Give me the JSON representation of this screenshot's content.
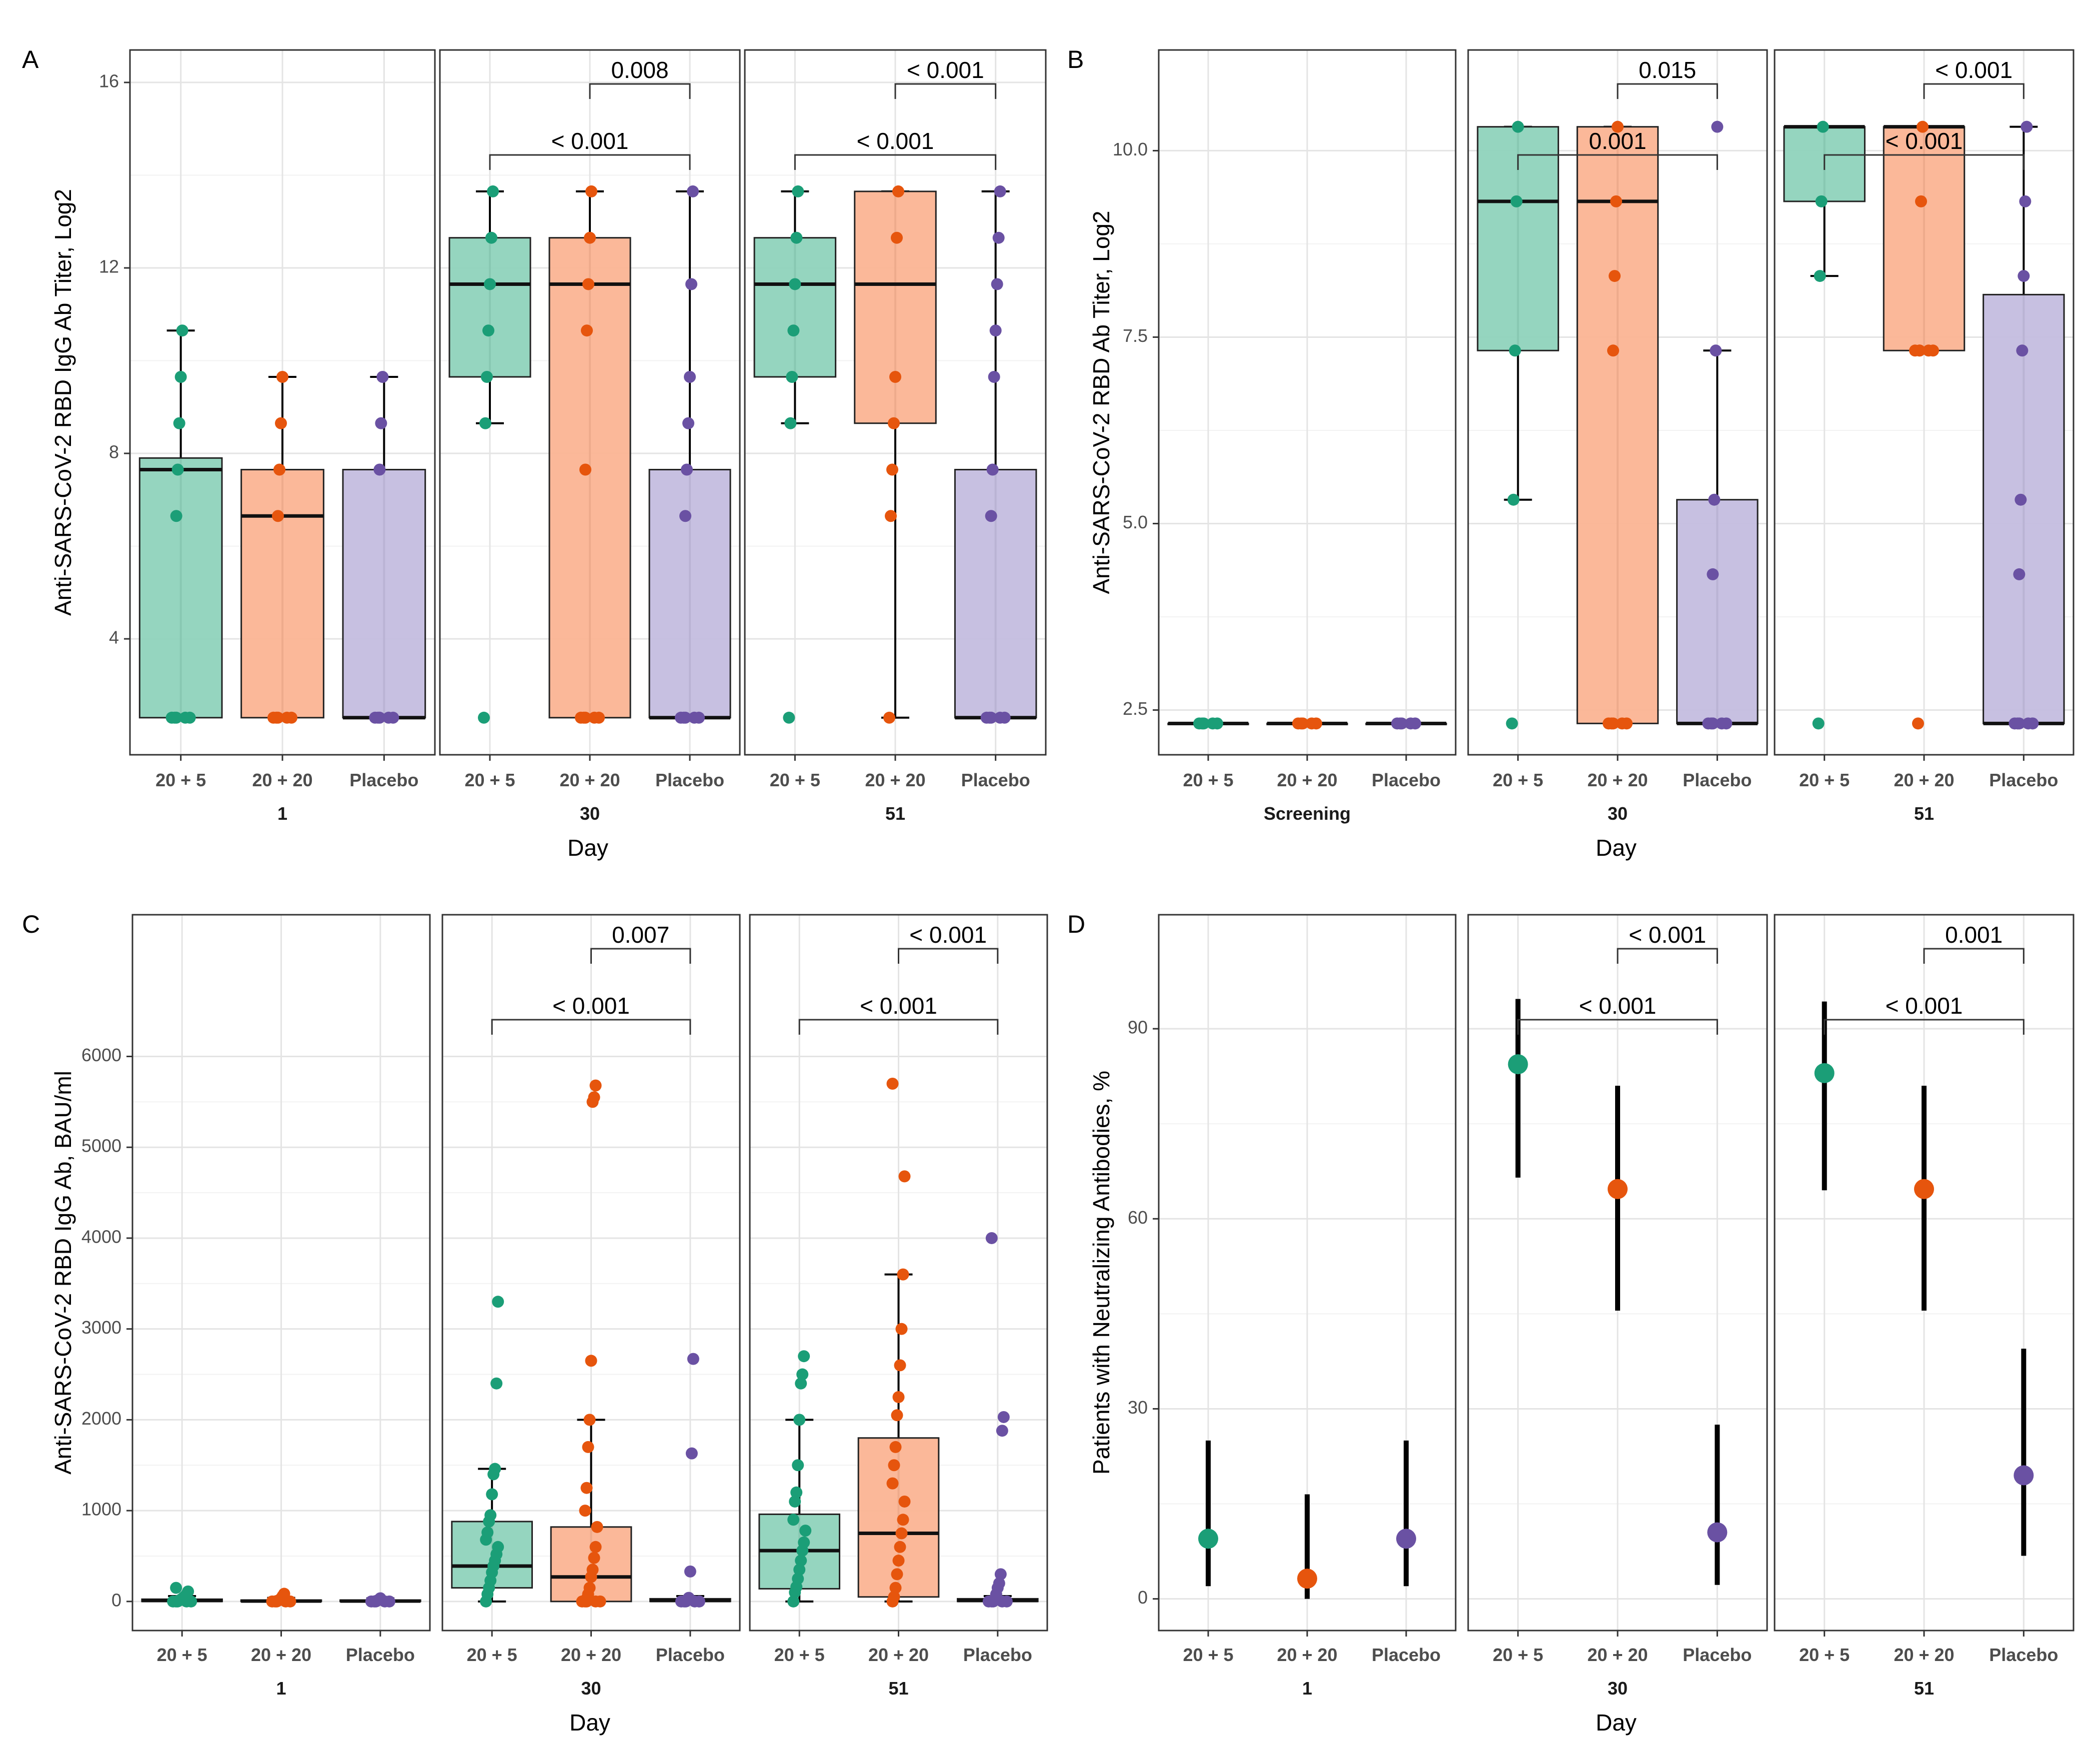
{
  "chart_data": [
    {
      "panel": "A",
      "type": "box",
      "ylabel": "Anti-SARS-CoV-2 RBD IgG Ab Titer, Log2",
      "xlabel": "Day",
      "ylim": [
        1.5,
        16.7
      ],
      "yticks": [
        4,
        8,
        12,
        16
      ],
      "ytick_labels": [
        "4",
        "8",
        "12",
        "16"
      ],
      "facets": [
        {
          "label": "1",
          "groups": [
            {
              "name": "20 + 5",
              "color": "#1b9e77",
              "fill": "#8fd3bc",
              "q1": 2.3,
              "median": 7.65,
              "q3": 7.9,
              "whisker_low": 2.3,
              "whisker_high": 10.65,
              "points": [
                2.3,
                6.65,
                7.65,
                8.65,
                9.65,
                10.65
              ]
            },
            {
              "name": "20 + 20",
              "color": "#e6550d",
              "fill": "#fbb493",
              "q1": 2.3,
              "median": 6.65,
              "q3": 7.65,
              "whisker_low": 2.3,
              "whisker_high": 9.65,
              "points": [
                2.3,
                6.65,
                7.65,
                8.65,
                9.65
              ]
            },
            {
              "name": "Placebo",
              "color": "#6a51a3",
              "fill": "#c4bddf",
              "q1": 2.3,
              "median": 2.3,
              "q3": 7.65,
              "whisker_low": 2.3,
              "whisker_high": 9.65,
              "points": [
                2.3,
                7.65,
                8.65,
                9.65
              ]
            }
          ],
          "comparisons": []
        },
        {
          "label": "30",
          "groups": [
            {
              "name": "20 + 5",
              "color": "#1b9e77",
              "fill": "#8fd3bc",
              "q1": 9.65,
              "median": 11.65,
              "q3": 12.65,
              "whisker_low": 8.65,
              "whisker_high": 13.65,
              "points": [
                2.3,
                8.65,
                9.65,
                10.65,
                11.65,
                12.65,
                13.65
              ]
            },
            {
              "name": "20 + 20",
              "color": "#e6550d",
              "fill": "#fbb493",
              "q1": 2.3,
              "median": 11.65,
              "q3": 12.65,
              "whisker_low": 2.3,
              "whisker_high": 13.65,
              "points": [
                2.3,
                7.65,
                10.65,
                11.65,
                12.65,
                13.65
              ]
            },
            {
              "name": "Placebo",
              "color": "#6a51a3",
              "fill": "#c4bddf",
              "q1": 2.3,
              "median": 2.3,
              "q3": 7.65,
              "whisker_low": 2.3,
              "whisker_high": 13.65,
              "points": [
                2.3,
                6.65,
                7.65,
                8.65,
                9.65,
                11.65,
                13.65
              ]
            }
          ],
          "comparisons": [
            {
              "from": 1,
              "to": 2,
              "label": "0.008",
              "level": 2
            },
            {
              "from": 0,
              "to": 2,
              "label": "< 0.001",
              "level": 1
            }
          ]
        },
        {
          "label": "51",
          "groups": [
            {
              "name": "20 + 5",
              "color": "#1b9e77",
              "fill": "#8fd3bc",
              "q1": 9.65,
              "median": 11.65,
              "q3": 12.65,
              "whisker_low": 8.65,
              "whisker_high": 13.65,
              "points": [
                2.3,
                8.65,
                9.65,
                10.65,
                11.65,
                12.65,
                13.65
              ]
            },
            {
              "name": "20 + 20",
              "color": "#e6550d",
              "fill": "#fbb493",
              "q1": 8.65,
              "median": 11.65,
              "q3": 13.65,
              "whisker_low": 2.3,
              "whisker_high": 13.65,
              "points": [
                2.3,
                6.65,
                7.65,
                8.65,
                9.65,
                12.65,
                13.65
              ]
            },
            {
              "name": "Placebo",
              "color": "#6a51a3",
              "fill": "#c4bddf",
              "q1": 2.3,
              "median": 2.3,
              "q3": 7.65,
              "whisker_low": 2.3,
              "whisker_high": 13.65,
              "points": [
                2.3,
                6.65,
                7.65,
                9.65,
                10.65,
                11.65,
                12.65,
                13.65
              ]
            }
          ],
          "comparisons": [
            {
              "from": 1,
              "to": 2,
              "label": "< 0.001",
              "level": 2
            },
            {
              "from": 0,
              "to": 2,
              "label": "< 0.001",
              "level": 1
            }
          ]
        }
      ]
    },
    {
      "panel": "B",
      "type": "box",
      "ylabel": "Anti-SARS-CoV-2 RBD Ab Titer, Log2",
      "xlabel": "Day",
      "ylim": [
        1.9,
        11.35
      ],
      "yticks": [
        2.5,
        5.0,
        7.5,
        10.0
      ],
      "ytick_labels": [
        "2.5",
        "5.0",
        "7.5",
        "10.0"
      ],
      "facets": [
        {
          "label": "Screening",
          "groups": [
            {
              "name": "20 + 5",
              "color": "#1b9e77",
              "fill": "#8fd3bc",
              "q1": 2.32,
              "median": 2.32,
              "q3": 2.32,
              "whisker_low": 2.32,
              "whisker_high": 2.32,
              "points": [
                2.32
              ]
            },
            {
              "name": "20 + 20",
              "color": "#e6550d",
              "fill": "#fbb493",
              "q1": 2.32,
              "median": 2.32,
              "q3": 2.32,
              "whisker_low": 2.32,
              "whisker_high": 2.32,
              "points": [
                2.32
              ]
            },
            {
              "name": "Placebo",
              "color": "#6a51a3",
              "fill": "#c4bddf",
              "q1": 2.32,
              "median": 2.32,
              "q3": 2.32,
              "whisker_low": 2.32,
              "whisker_high": 2.32,
              "points": [
                2.32
              ]
            }
          ],
          "comparisons": []
        },
        {
          "label": "30",
          "groups": [
            {
              "name": "20 + 5",
              "color": "#1b9e77",
              "fill": "#8fd3bc",
              "q1": 7.32,
              "median": 9.32,
              "q3": 10.32,
              "whisker_low": 5.32,
              "whisker_high": 10.32,
              "points": [
                2.32,
                5.32,
                7.32,
                9.32,
                10.32
              ]
            },
            {
              "name": "20 + 20",
              "color": "#e6550d",
              "fill": "#fbb493",
              "q1": 2.32,
              "median": 9.32,
              "q3": 10.32,
              "whisker_low": 2.32,
              "whisker_high": 10.32,
              "points": [
                2.32,
                7.32,
                8.32,
                9.32,
                10.32
              ]
            },
            {
              "name": "Placebo",
              "color": "#6a51a3",
              "fill": "#c4bddf",
              "q1": 2.32,
              "median": 2.32,
              "q3": 5.32,
              "whisker_low": 2.32,
              "whisker_high": 7.32,
              "points": [
                2.32,
                4.32,
                5.32,
                7.32,
                10.32
              ]
            }
          ],
          "comparisons": [
            {
              "from": 1,
              "to": 2,
              "label": "0.015",
              "level": 2
            },
            {
              "from": 0,
              "to": 2,
              "label": "0.001",
              "level": 1
            }
          ]
        },
        {
          "label": "51",
          "groups": [
            {
              "name": "20 + 5",
              "color": "#1b9e77",
              "fill": "#8fd3bc",
              "q1": 9.32,
              "median": 10.32,
              "q3": 10.32,
              "whisker_low": 8.32,
              "whisker_high": 10.32,
              "points": [
                2.32,
                8.32,
                9.32,
                10.32
              ]
            },
            {
              "name": "20 + 20",
              "color": "#e6550d",
              "fill": "#fbb493",
              "q1": 7.32,
              "median": 10.32,
              "q3": 10.32,
              "whisker_low": 7.32,
              "whisker_high": 10.32,
              "points": [
                2.32,
                7.32,
                9.32,
                10.32
              ]
            },
            {
              "name": "Placebo",
              "color": "#6a51a3",
              "fill": "#c4bddf",
              "q1": 2.32,
              "median": 2.32,
              "q3": 8.07,
              "whisker_low": 2.32,
              "whisker_high": 10.32,
              "points": [
                2.32,
                4.32,
                5.32,
                7.32,
                8.32,
                9.32,
                10.32
              ]
            }
          ],
          "comparisons": [
            {
              "from": 1,
              "to": 2,
              "label": "< 0.001",
              "level": 2
            },
            {
              "from": 0,
              "to": 2,
              "label": "< 0.001",
              "level": 1
            }
          ]
        }
      ]
    },
    {
      "panel": "C",
      "type": "box",
      "ylabel": "Anti-SARS-CoV-2 RBD IgG Ab, BAU/ml",
      "xlabel": "Day",
      "ylim": [
        -320,
        7560
      ],
      "yticks": [
        0,
        1000,
        2000,
        3000,
        4000,
        5000,
        6000
      ],
      "ytick_labels": [
        "0",
        "1000",
        "2000",
        "3000",
        "4000",
        "5000",
        "6000"
      ],
      "facets": [
        {
          "label": "1",
          "groups": [
            {
              "name": "20 + 5",
              "color": "#1b9e77",
              "fill": "#8fd3bc",
              "q1": 0,
              "median": 10,
              "q3": 25,
              "whisker_low": 0,
              "whisker_high": 60,
              "points": [
                0,
                5,
                10,
                20,
                30,
                45,
                60,
                80,
                110,
                150
              ]
            },
            {
              "name": "20 + 20",
              "color": "#e6550d",
              "fill": "#fbb493",
              "q1": 0,
              "median": 5,
              "q3": 15,
              "whisker_low": 0,
              "whisker_high": 40,
              "points": [
                0,
                5,
                10,
                20,
                35,
                60,
                85
              ]
            },
            {
              "name": "Placebo",
              "color": "#6a51a3",
              "fill": "#c4bddf",
              "q1": 0,
              "median": 5,
              "q3": 15,
              "whisker_low": 0,
              "whisker_high": 35,
              "points": [
                0,
                5,
                10,
                20,
                35
              ]
            }
          ],
          "comparisons": []
        },
        {
          "label": "30",
          "groups": [
            {
              "name": "20 + 5",
              "color": "#1b9e77",
              "fill": "#8fd3bc",
              "q1": 150,
              "median": 390,
              "q3": 880,
              "whisker_low": 0,
              "whisker_high": 1460,
              "points": [
                0,
                80,
                150,
                230,
                320,
                390,
                450,
                520,
                600,
                680,
                760,
                880,
                950,
                1180,
                1400,
                1460,
                2400,
                3300
              ]
            },
            {
              "name": "20 + 20",
              "color": "#e6550d",
              "fill": "#fbb493",
              "q1": 0,
              "median": 270,
              "q3": 820,
              "whisker_low": 0,
              "whisker_high": 2000,
              "points": [
                0,
                30,
                80,
                150,
                270,
                350,
                480,
                600,
                820,
                1000,
                1250,
                1700,
                2000,
                2650,
                5500,
                5550,
                5680
              ]
            },
            {
              "name": "Placebo",
              "color": "#6a51a3",
              "fill": "#c4bddf",
              "q1": 0,
              "median": 10,
              "q3": 30,
              "whisker_low": 0,
              "whisker_high": 60,
              "points": [
                0,
                10,
                20,
                40,
                330,
                1630,
                2670
              ]
            }
          ],
          "comparisons": [
            {
              "from": 1,
              "to": 2,
              "label": "0.007",
              "level": 2
            },
            {
              "from": 0,
              "to": 2,
              "label": "< 0.001",
              "level": 1
            }
          ]
        },
        {
          "label": "51",
          "groups": [
            {
              "name": "20 + 5",
              "color": "#1b9e77",
              "fill": "#8fd3bc",
              "q1": 140,
              "median": 560,
              "q3": 960,
              "whisker_low": 0,
              "whisker_high": 2000,
              "points": [
                0,
                100,
                160,
                250,
                350,
                450,
                560,
                650,
                780,
                900,
                1100,
                1200,
                1500,
                2000,
                2400,
                2500,
                2700
              ]
            },
            {
              "name": "20 + 20",
              "color": "#e6550d",
              "fill": "#fbb493",
              "q1": 50,
              "median": 750,
              "q3": 1800,
              "whisker_low": 0,
              "whisker_high": 3600,
              "points": [
                0,
                50,
                150,
                300,
                450,
                600,
                750,
                900,
                1100,
                1300,
                1500,
                1700,
                2050,
                2250,
                2600,
                3000,
                3600,
                4680,
                5700
              ]
            },
            {
              "name": "Placebo",
              "color": "#6a51a3",
              "fill": "#c4bddf",
              "q1": 0,
              "median": 10,
              "q3": 30,
              "whisker_low": 0,
              "whisker_high": 60,
              "points": [
                0,
                10,
                30,
                80,
                150,
                200,
                300,
                1880,
                2030,
                4000
              ]
            }
          ],
          "comparisons": [
            {
              "from": 1,
              "to": 2,
              "label": "< 0.001",
              "level": 2
            },
            {
              "from": 0,
              "to": 2,
              "label": "< 0.001",
              "level": 1
            }
          ]
        }
      ]
    },
    {
      "panel": "D",
      "type": "pointrange",
      "ylabel": "Patients with Neutralizing Antibodies, %",
      "xlabel": "Day",
      "ylim": [
        -5,
        108
      ],
      "yticks": [
        0,
        30,
        60,
        90
      ],
      "ytick_labels": [
        "0",
        "30",
        "60",
        "90"
      ],
      "facets": [
        {
          "label": "1",
          "groups": [
            {
              "name": "20 + 5",
              "color": "#1b9e77",
              "value": 9.5,
              "low": 2,
              "high": 25
            },
            {
              "name": "20 + 20",
              "color": "#e6550d",
              "value": 3.2,
              "low": 0,
              "high": 16.5
            },
            {
              "name": "Placebo",
              "color": "#6a51a3",
              "value": 9.5,
              "low": 2,
              "high": 25
            }
          ],
          "comparisons": []
        },
        {
          "label": "30",
          "groups": [
            {
              "name": "20 + 5",
              "color": "#1b9e77",
              "value": 84.4,
              "low": 66.5,
              "high": 94.7
            },
            {
              "name": "20 + 20",
              "color": "#e6550d",
              "value": 64.7,
              "low": 45.5,
              "high": 81
            },
            {
              "name": "Placebo",
              "color": "#6a51a3",
              "value": 10.5,
              "low": 2.2,
              "high": 27.5
            }
          ],
          "comparisons": [
            {
              "from": 1,
              "to": 2,
              "label": "< 0.001",
              "level": 2
            },
            {
              "from": 0,
              "to": 2,
              "label": "< 0.001",
              "level": 1
            }
          ]
        },
        {
          "label": "51",
          "groups": [
            {
              "name": "20 + 5",
              "color": "#1b9e77",
              "value": 83,
              "low": 64.5,
              "high": 94.3
            },
            {
              "name": "20 + 20",
              "color": "#e6550d",
              "value": 64.7,
              "low": 45.5,
              "high": 81
            },
            {
              "name": "Placebo",
              "color": "#6a51a3",
              "value": 19.5,
              "low": 6.8,
              "high": 39.5
            }
          ],
          "comparisons": [
            {
              "from": 1,
              "to": 2,
              "label": "0.001",
              "level": 2
            },
            {
              "from": 0,
              "to": 2,
              "label": "< 0.001",
              "level": 1
            }
          ]
        }
      ]
    }
  ]
}
